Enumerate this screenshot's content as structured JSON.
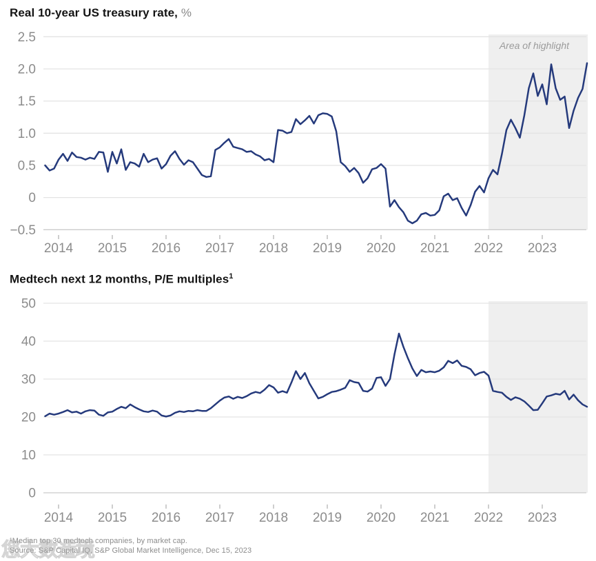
{
  "footer": {
    "footnote": "¹Median top 30 medtech companies, by market cap.",
    "source": "Source: S&P Capital IQ, S&P Global Market Intelligence, Dec 15, 2023"
  },
  "watermark": {
    "text": "您大数造境"
  },
  "colors": {
    "line": "#253a7c",
    "grid": "#e3e3e3",
    "axis_line": "#cbcbcb",
    "tick": "#b3b3b3",
    "label": "#8c8c8c",
    "highlight_fill": "#efefef",
    "highlight_label": "#9b9b9b",
    "title": "#141414",
    "unit": "#8a8a8a"
  },
  "chart_data": [
    {
      "type": "line",
      "title": "Real 10-year US treasury rate,",
      "unit": "%",
      "xlabel": "",
      "ylabel": "",
      "ylim": [
        -0.5,
        2.5
      ],
      "grid": true,
      "legend": "none",
      "x_ticks": [
        2014,
        2015,
        2016,
        2017,
        2018,
        2019,
        2020,
        2021,
        2022,
        2023
      ],
      "x_tick_labels": [
        "2014",
        "2015",
        "2016",
        "2017",
        "2018",
        "2019",
        "2020",
        "2021",
        "2022",
        "2023"
      ],
      "y_ticks": [
        {
          "v": 2.5,
          "label": "2.5"
        },
        {
          "v": 2.0,
          "label": "2.0"
        },
        {
          "v": 1.5,
          "label": "1.5"
        },
        {
          "v": 1.0,
          "label": "1.0"
        },
        {
          "v": 0.5,
          "label": "0.5"
        },
        {
          "v": 0.0,
          "label": "0"
        },
        {
          "v": -0.5,
          "label": "−0.5"
        }
      ],
      "highlight": {
        "label": "Area of highlight",
        "x_start": 2022,
        "x_end": "plot-right"
      },
      "series": [
        {
          "name": "Real 10-year US treasury rate (%)",
          "x_start": 2013.75,
          "points_per_year": 12,
          "values": [
            0.5,
            0.42,
            0.45,
            0.59,
            0.68,
            0.57,
            0.7,
            0.63,
            0.62,
            0.59,
            0.62,
            0.6,
            0.71,
            0.7,
            0.4,
            0.71,
            0.53,
            0.75,
            0.43,
            0.55,
            0.53,
            0.48,
            0.68,
            0.55,
            0.59,
            0.61,
            0.45,
            0.52,
            0.65,
            0.72,
            0.6,
            0.51,
            0.58,
            0.55,
            0.45,
            0.35,
            0.32,
            0.33,
            0.74,
            0.78,
            0.85,
            0.91,
            0.79,
            0.77,
            0.75,
            0.71,
            0.72,
            0.67,
            0.64,
            0.58,
            0.6,
            0.55,
            1.05,
            1.04,
            1.0,
            1.02,
            1.22,
            1.14,
            1.2,
            1.27,
            1.15,
            1.28,
            1.31,
            1.3,
            1.26,
            1.03,
            0.55,
            0.49,
            0.4,
            0.46,
            0.38,
            0.23,
            0.3,
            0.44,
            0.46,
            0.52,
            0.45,
            -0.14,
            -0.04,
            -0.15,
            -0.23,
            -0.36,
            -0.4,
            -0.36,
            -0.26,
            -0.24,
            -0.28,
            -0.27,
            -0.2,
            0.02,
            0.06,
            -0.04,
            -0.01,
            -0.16,
            -0.28,
            -0.12,
            0.09,
            0.18,
            0.08,
            0.3,
            0.43,
            0.36,
            0.68,
            1.05,
            1.21,
            1.08,
            0.93,
            1.28,
            1.7,
            1.93,
            1.58,
            1.76,
            1.45,
            2.07,
            1.7,
            1.52,
            1.57,
            1.08,
            1.35,
            1.55,
            1.69,
            2.09
          ]
        }
      ]
    },
    {
      "type": "line",
      "title": "Medtech next 12 months, P/E multiples",
      "title_footnote_marker": "1",
      "xlabel": "",
      "ylabel": "",
      "ylim": [
        0,
        50
      ],
      "grid": true,
      "legend": "none",
      "x_ticks": [
        2014,
        2015,
        2016,
        2017,
        2018,
        2019,
        2020,
        2021,
        2022,
        2023
      ],
      "x_tick_labels": [
        "2014",
        "2015",
        "2016",
        "2017",
        "2018",
        "2019",
        "2020",
        "2021",
        "2022",
        "2023"
      ],
      "y_ticks": [
        {
          "v": 50,
          "label": "50"
        },
        {
          "v": 40,
          "label": "40"
        },
        {
          "v": 30,
          "label": "30"
        },
        {
          "v": 20,
          "label": "20"
        },
        {
          "v": 10,
          "label": "10"
        },
        {
          "v": 0,
          "label": "0"
        }
      ],
      "highlight": {
        "label": "",
        "x_start": 2022,
        "x_end": "plot-right"
      },
      "series": [
        {
          "name": "Medtech next-12-months P/E multiple",
          "x_start": 2013.75,
          "points_per_year": 12,
          "values": [
            20.2,
            20.9,
            20.6,
            20.9,
            21.3,
            21.8,
            21.2,
            21.4,
            20.9,
            21.5,
            21.8,
            21.7,
            20.6,
            20.3,
            21.2,
            21.4,
            22.1,
            22.7,
            22.3,
            23.3,
            22.6,
            22.0,
            21.5,
            21.3,
            21.7,
            21.4,
            20.4,
            20.1,
            20.4,
            21.1,
            21.5,
            21.3,
            21.6,
            21.5,
            21.8,
            21.6,
            21.6,
            22.3,
            23.3,
            24.3,
            25.1,
            25.4,
            24.8,
            25.3,
            25.0,
            25.5,
            26.2,
            26.6,
            26.3,
            27.2,
            28.4,
            27.8,
            26.4,
            26.8,
            26.4,
            29.1,
            32.1,
            30.0,
            31.6,
            28.9,
            26.9,
            24.9,
            25.3,
            26.0,
            26.6,
            26.8,
            27.2,
            27.7,
            29.7,
            29.2,
            29.0,
            26.9,
            26.7,
            27.5,
            30.3,
            30.5,
            28.2,
            30.0,
            36.5,
            42.0,
            38.5,
            35.5,
            32.8,
            30.8,
            32.4,
            31.8,
            32.0,
            31.8,
            32.2,
            33.1,
            34.8,
            34.2,
            34.9,
            33.5,
            33.2,
            32.6,
            31.0,
            31.6,
            31.9,
            30.9,
            26.9,
            26.6,
            26.4,
            25.3,
            24.5,
            25.2,
            24.8,
            24.1,
            23.0,
            21.8,
            21.9,
            23.6,
            25.4,
            25.7,
            26.1,
            25.9,
            26.9,
            24.6,
            25.9,
            24.4,
            23.3,
            22.7
          ]
        }
      ]
    }
  ]
}
